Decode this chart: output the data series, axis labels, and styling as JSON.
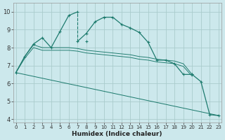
{
  "bg_color": "#cce8ec",
  "grid_color": "#aacccc",
  "line_color": "#1e7b6e",
  "xlabel": "Humidex (Indice chaleur)",
  "ylim": [
    3.8,
    10.5
  ],
  "xlim": [
    -0.3,
    23.3
  ],
  "yticks": [
    4,
    5,
    6,
    7,
    8,
    9,
    10
  ],
  "xticks": [
    0,
    1,
    2,
    3,
    4,
    5,
    6,
    7,
    8,
    9,
    10,
    11,
    12,
    13,
    14,
    15,
    16,
    17,
    18,
    19,
    20,
    21,
    22,
    23
  ],
  "curve_peaked": {
    "x1": [
      0,
      1,
      2,
      3,
      4,
      5,
      6,
      7
    ],
    "y1": [
      6.6,
      7.5,
      8.2,
      8.55,
      8.0,
      8.9,
      9.8,
      10.0
    ],
    "x2": [
      7,
      8,
      9,
      10,
      11,
      12,
      13,
      14,
      15,
      16,
      17,
      18,
      19,
      20
    ],
    "y2": [
      8.35,
      8.8,
      9.45,
      9.7,
      9.7,
      9.3,
      9.1,
      8.85,
      8.3,
      7.3,
      7.3,
      7.1,
      6.5,
      6.5
    ]
  },
  "dashed_segment": {
    "x": [
      7,
      7
    ],
    "y": [
      8.35,
      10.0
    ]
  },
  "curve_flat1": {
    "x": [
      0,
      1,
      2,
      3,
      4,
      5,
      6,
      7,
      8,
      9,
      10,
      11,
      12,
      13,
      14,
      15,
      16,
      17,
      18,
      19,
      20
    ],
    "y": [
      6.6,
      7.5,
      8.15,
      8.0,
      8.0,
      8.0,
      8.0,
      7.95,
      7.85,
      7.8,
      7.75,
      7.7,
      7.65,
      7.6,
      7.5,
      7.45,
      7.35,
      7.3,
      7.25,
      7.1,
      6.5
    ]
  },
  "curve_flat2": {
    "x": [
      0,
      1,
      2,
      3,
      4,
      5,
      6,
      7,
      8,
      9,
      10,
      11,
      12,
      13,
      14,
      15,
      16,
      17,
      18,
      19,
      20
    ],
    "y": [
      6.6,
      7.4,
      8.0,
      7.85,
      7.85,
      7.85,
      7.85,
      7.8,
      7.7,
      7.65,
      7.6,
      7.55,
      7.5,
      7.45,
      7.35,
      7.3,
      7.2,
      7.15,
      7.1,
      6.95,
      6.4
    ]
  },
  "curve_diagonal": {
    "x": [
      0,
      23
    ],
    "y": [
      6.6,
      4.2
    ]
  },
  "curve_drop": {
    "x": [
      20,
      21,
      22,
      23
    ],
    "y": [
      6.5,
      6.1,
      4.25,
      4.2
    ]
  },
  "marker_special": {
    "x": [
      8
    ],
    "y": [
      8.35
    ]
  }
}
